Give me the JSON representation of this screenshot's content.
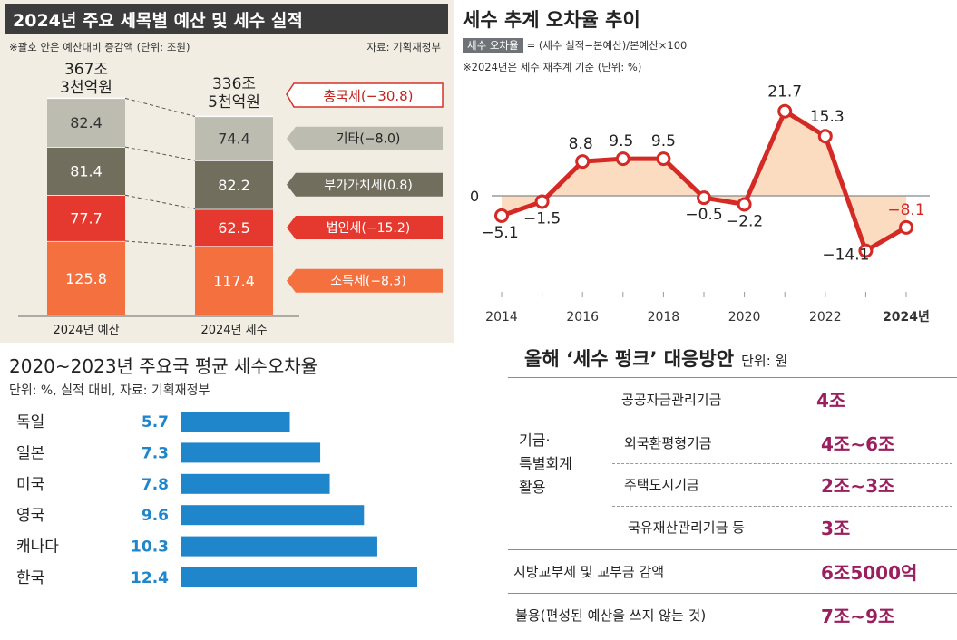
{
  "panel1": {
    "title": "2024년 주요 세목별 예산 및 세수 실적",
    "note": "※괄호 안은 예산대비 증감액 (단위: 조원)",
    "source": "자료: 기획재정부",
    "total_budget_line1": "367조",
    "total_budget_line2": "3천억원",
    "total_actual_line1": "336조",
    "total_actual_line2": "5천억원",
    "total_change_label": "총국세(−30.8)",
    "xlabel_budget": "2024년 예산",
    "xlabel_actual": "2024년 세수",
    "colors": {
      "other": "#bdbcb1",
      "vat": "#726e5e",
      "corp": "#e5392f",
      "income": "#f5703f",
      "total_border": "#d6322a"
    }
  },
  "panel2": {
    "title": "세수 추계 오차율 추이",
    "formula_tag": "세수 오차율",
    "formula": "= (세수 실적−본예산)/본예산×100",
    "note": "※2024년은 세수 재추계 기준 (단위: %)",
    "zero_label": "0",
    "x_ticks": [
      "2014",
      "2016",
      "2018",
      "2020",
      "2022",
      "2024년"
    ],
    "colors": {
      "line": "#d42a25",
      "fill": "#fbdcc0",
      "marker_fill": "#ffffff"
    }
  },
  "panel3": {
    "title": "2020~2023년 주요국 평균 세수오차율",
    "subtitle": "단위: %, 실적 대비, 자료: 기획재정부",
    "colors": {
      "bar": "#1f86cb",
      "value": "#1f86cb"
    }
  },
  "panel4": {
    "title": "올해 ‘세수 펑크’ 대응방안",
    "unit": "단위: 원",
    "group_label_lines": [
      "기금·",
      "특별회계",
      "활용"
    ],
    "rows": [
      {
        "label": "공공자금관리기금",
        "value": "4조"
      },
      {
        "label": "외국환평형기금",
        "value": "4조∼6조"
      },
      {
        "label": "주택도시기금",
        "value": "2조∼3조"
      },
      {
        "label": "국유재산관리기금 등",
        "value": "3조"
      },
      {
        "label": "지방교부세 및 교부금 감액",
        "value": "6조5000억"
      },
      {
        "label": "불용(편성된 예산을 쓰지 않는 것)",
        "value": "7조∼9조"
      }
    ],
    "colors": {
      "value": "#9b1f5f"
    }
  },
  "chart_data": [
    {
      "type": "bar",
      "title": "2024년 주요 세목별 예산 및 세수 실적",
      "categories": [
        "2024년 예산",
        "2024년 세수"
      ],
      "series": [
        {
          "name": "소득세(−8.3)",
          "values": [
            125.8,
            117.4
          ]
        },
        {
          "name": "법인세(−15.2)",
          "values": [
            77.7,
            62.5
          ]
        },
        {
          "name": "부가가치세(0.8)",
          "values": [
            81.4,
            82.2
          ]
        },
        {
          "name": "기타(−8.0)",
          "values": [
            82.4,
            74.4
          ]
        }
      ],
      "stacked": true,
      "ylabel": "",
      "xlabel": ""
    },
    {
      "type": "line",
      "title": "세수 추계 오차율 추이",
      "x": [
        "2014",
        "2015",
        "2016",
        "2017",
        "2018",
        "2019",
        "2020",
        "2021",
        "2022",
        "2023",
        "2024"
      ],
      "values": [
        -5.1,
        -1.5,
        8.8,
        9.5,
        9.5,
        -0.5,
        -2.2,
        21.7,
        15.3,
        -14.1,
        -8.1
      ],
      "value_labels": [
        "−5.1",
        "−1.5",
        "8.8",
        "9.5",
        "9.5",
        "−0.5",
        "−2.2",
        "21.7",
        "15.3",
        "−14.1",
        "−8.1"
      ],
      "ylim": [
        -16,
        24
      ],
      "area_fill": true
    },
    {
      "type": "bar",
      "orientation": "horizontal",
      "title": "2020~2023년 주요국 평균 세수오차율",
      "categories": [
        "독일",
        "일본",
        "미국",
        "영국",
        "캐나다",
        "한국"
      ],
      "values": [
        5.7,
        7.3,
        7.8,
        9.6,
        10.3,
        12.4
      ],
      "value_labels": [
        "5.7",
        "7.3",
        "7.8",
        "9.6",
        "10.3",
        "12.4"
      ],
      "xlim": [
        0,
        12.4
      ]
    }
  ]
}
